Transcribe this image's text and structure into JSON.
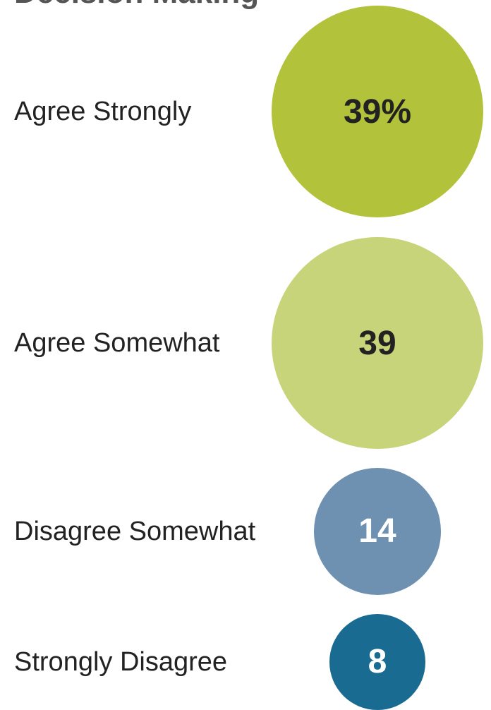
{
  "title": "Decision Making",
  "chart_data": {
    "type": "bubble",
    "categories": [
      "Agree Strongly",
      "Agree Somewhat",
      "Disagree Somewhat",
      "Strongly Disagree"
    ],
    "values": [
      39,
      39,
      14,
      8
    ],
    "value_labels": [
      "39%",
      "39",
      "14",
      "8"
    ],
    "colors": [
      "#b2c23a",
      "#c8d47a",
      "#6f91b1",
      "#1a6b91"
    ],
    "label_colors": [
      "#222222",
      "#222222",
      "#ffffff",
      "#ffffff"
    ]
  }
}
